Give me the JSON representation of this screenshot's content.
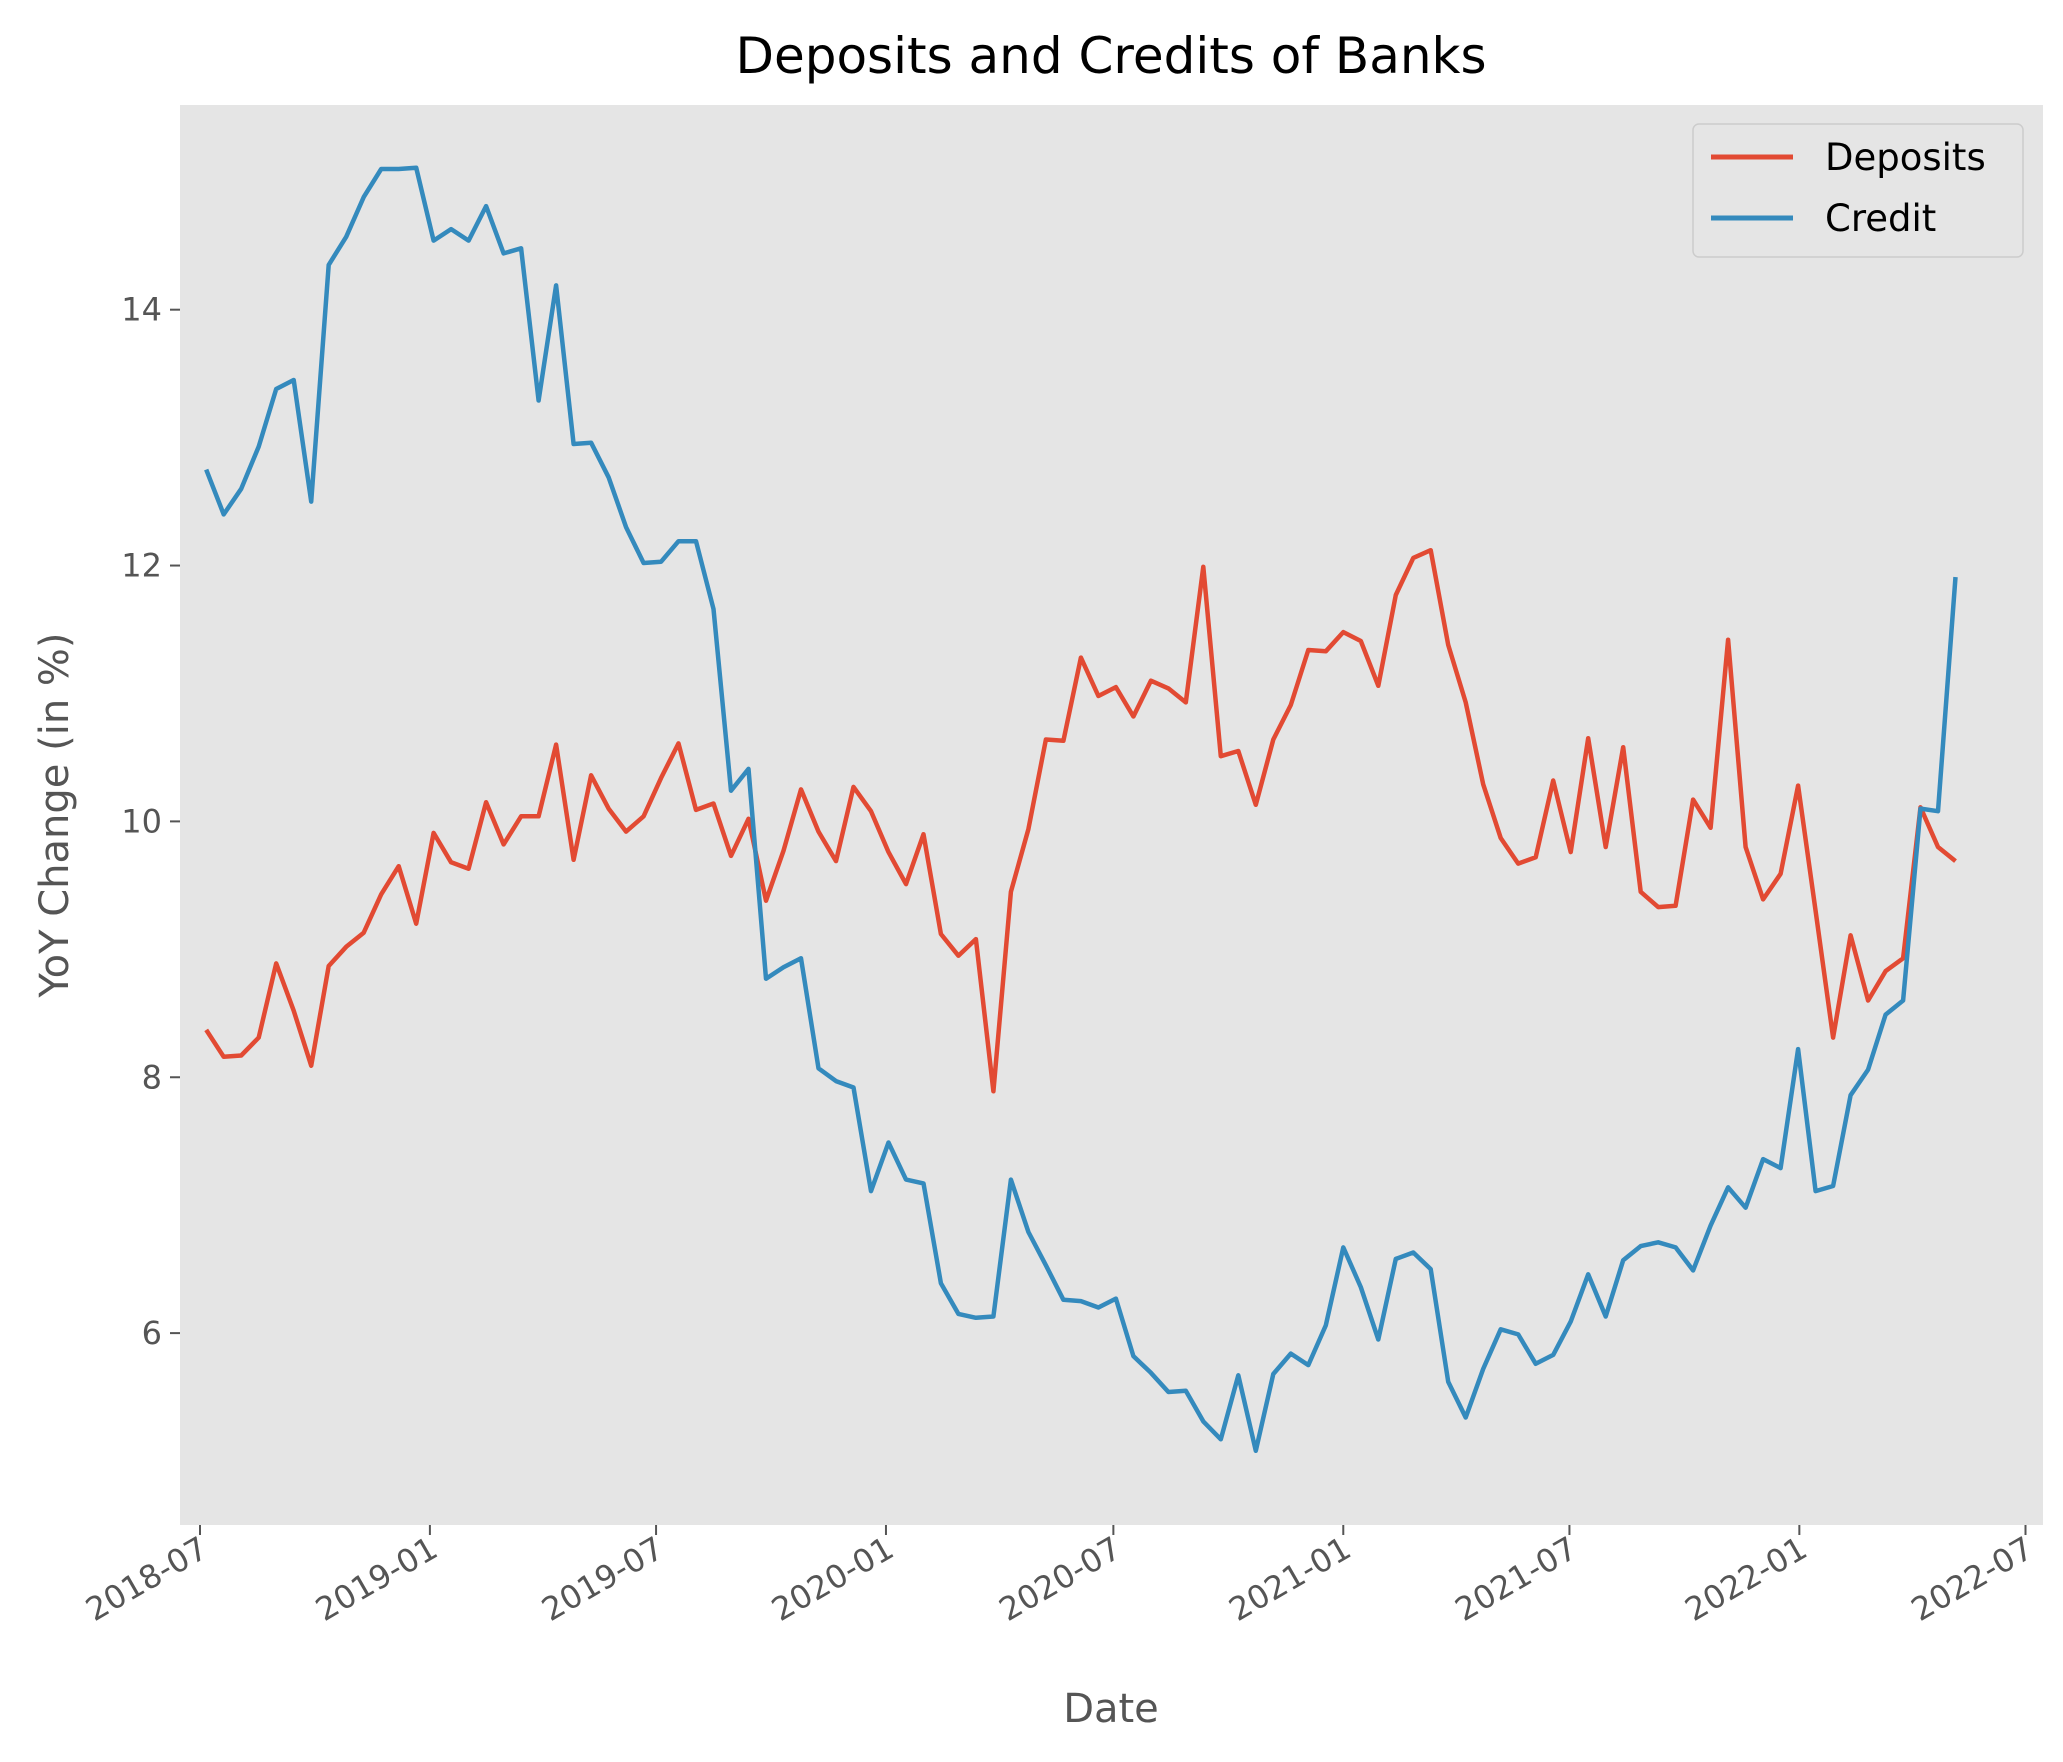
{
  "chart_data": {
    "type": "line",
    "title": "Deposits and Credits of Banks",
    "xlabel": "Date",
    "ylabel": "YoY Change (in %)",
    "xlim": [
      "2018-06-15",
      "2022-07-15"
    ],
    "ylim": [
      4.5,
      15.6
    ],
    "grid": false,
    "legend_position": "top-right",
    "x_ticks": [
      "2018-07",
      "2019-01",
      "2019-07",
      "2020-01",
      "2020-07",
      "2021-01",
      "2021-07",
      "2022-01",
      "2022-07"
    ],
    "y_ticks": [
      "6",
      "8",
      "10",
      "12",
      "14"
    ],
    "x": [
      "2018-07-06",
      "2018-07-20",
      "2018-08-03",
      "2018-08-17",
      "2018-08-31",
      "2018-09-14",
      "2018-09-28",
      "2018-10-12",
      "2018-10-26",
      "2018-11-09",
      "2018-11-23",
      "2018-12-07",
      "2018-12-21",
      "2019-01-04",
      "2019-01-18",
      "2019-02-01",
      "2019-02-15",
      "2019-03-01",
      "2019-03-15",
      "2019-03-29",
      "2019-04-12",
      "2019-04-26",
      "2019-05-10",
      "2019-05-24",
      "2019-06-07",
      "2019-06-21",
      "2019-07-05",
      "2019-07-19",
      "2019-08-02",
      "2019-08-16",
      "2019-08-30",
      "2019-09-13",
      "2019-09-27",
      "2019-10-11",
      "2019-10-25",
      "2019-11-08",
      "2019-11-22",
      "2019-12-06",
      "2019-12-20",
      "2020-01-03",
      "2020-01-17",
      "2020-01-31",
      "2020-02-14",
      "2020-02-28",
      "2020-03-13",
      "2020-03-27",
      "2020-04-10",
      "2020-04-24",
      "2020-05-08",
      "2020-05-22",
      "2020-06-05",
      "2020-06-19",
      "2020-07-03",
      "2020-07-17",
      "2020-07-31",
      "2020-08-14",
      "2020-08-28",
      "2020-09-11",
      "2020-09-25",
      "2020-10-09",
      "2020-10-23",
      "2020-11-06",
      "2020-11-20",
      "2020-12-04",
      "2020-12-18",
      "2021-01-01",
      "2021-01-15",
      "2021-01-29",
      "2021-02-12",
      "2021-02-26",
      "2021-03-12",
      "2021-03-26",
      "2021-04-09",
      "2021-04-23",
      "2021-05-07",
      "2021-05-21",
      "2021-06-04",
      "2021-06-18",
      "2021-07-02",
      "2021-07-16",
      "2021-07-30",
      "2021-08-13",
      "2021-08-27",
      "2021-09-10",
      "2021-09-24",
      "2021-10-08",
      "2021-10-22",
      "2021-11-05",
      "2021-11-19",
      "2021-12-03",
      "2021-12-17",
      "2021-12-31",
      "2022-01-14",
      "2022-01-28",
      "2022-02-11",
      "2022-02-25",
      "2022-03-11",
      "2022-03-25",
      "2022-04-08",
      "2022-04-22",
      "2022-05-06"
    ],
    "series": [
      {
        "name": "Deposits",
        "color": "#E24A33",
        "values": [
          8.37,
          8.16,
          8.17,
          8.31,
          8.89,
          8.52,
          8.09,
          8.87,
          9.02,
          9.13,
          9.43,
          9.65,
          9.2,
          9.91,
          9.68,
          9.63,
          10.15,
          9.82,
          10.04,
          10.04,
          10.6,
          9.7,
          10.36,
          10.1,
          9.92,
          10.04,
          10.34,
          10.61,
          10.09,
          10.14,
          9.73,
          10.02,
          9.38,
          9.77,
          10.25,
          9.92,
          9.69,
          10.27,
          10.08,
          9.76,
          9.51,
          9.9,
          9.12,
          8.95,
          9.08,
          7.89,
          9.45,
          9.94,
          10.64,
          10.63,
          11.28,
          10.98,
          11.05,
          10.82,
          11.1,
          11.04,
          10.93,
          11.99,
          10.51,
          10.55,
          10.13,
          10.64,
          10.91,
          11.34,
          11.33,
          11.48,
          11.41,
          11.06,
          11.77,
          12.06,
          12.12,
          11.38,
          10.93,
          10.29,
          9.87,
          9.67,
          9.72,
          10.32,
          9.76,
          10.65,
          9.8,
          10.58,
          9.45,
          9.33,
          9.34,
          10.17,
          9.95,
          11.42,
          9.8,
          9.39,
          9.59,
          10.28,
          9.3,
          8.31,
          9.11,
          8.6,
          8.83,
          8.93,
          10.11,
          9.8,
          9.69
        ]
      },
      {
        "name": "Credit",
        "color": "#348ABD",
        "values": [
          12.75,
          12.4,
          12.6,
          12.93,
          13.38,
          13.45,
          12.5,
          14.35,
          14.57,
          14.88,
          15.1,
          15.1,
          15.11,
          14.54,
          14.63,
          14.54,
          14.81,
          14.44,
          14.48,
          13.29,
          14.19,
          12.95,
          12.96,
          12.69,
          12.3,
          12.02,
          12.03,
          12.19,
          12.19,
          11.66,
          10.24,
          10.41,
          8.77,
          8.86,
          8.93,
          8.07,
          7.97,
          7.92,
          7.11,
          7.49,
          7.2,
          7.17,
          6.39,
          6.15,
          6.12,
          6.13,
          7.2,
          6.79,
          6.53,
          6.26,
          6.25,
          6.2,
          6.27,
          5.82,
          5.69,
          5.54,
          5.55,
          5.31,
          5.17,
          5.67,
          5.08,
          5.68,
          5.84,
          5.75,
          6.06,
          6.67,
          6.36,
          5.95,
          6.58,
          6.63,
          6.5,
          5.62,
          5.34,
          5.72,
          6.03,
          5.99,
          5.76,
          5.83,
          6.09,
          6.46,
          6.13,
          6.57,
          6.68,
          6.71,
          6.67,
          6.49,
          6.84,
          7.14,
          6.98,
          7.36,
          7.29,
          8.22,
          7.11,
          7.15,
          7.86,
          8.06,
          8.49,
          8.6,
          10.1,
          10.08,
          11.91
        ]
      }
    ]
  }
}
